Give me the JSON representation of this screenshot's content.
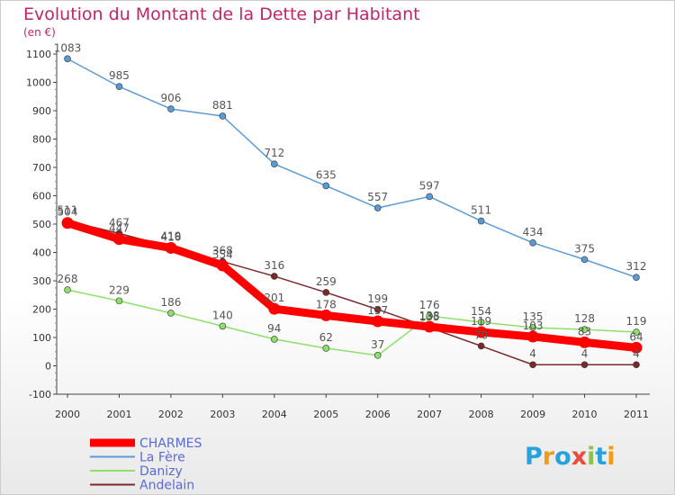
{
  "chart_data": {
    "type": "line",
    "title": "Evolution du Montant de la Dette par Habitant",
    "subtitle": "(en €)",
    "xlabel": "",
    "ylabel": "",
    "x": [
      "2000",
      "2001",
      "2002",
      "2003",
      "2004",
      "2005",
      "2006",
      "2007",
      "2008",
      "2009",
      "2010",
      "2011"
    ],
    "ylim": [
      -100,
      1100
    ],
    "yticks": [
      -100,
      0,
      100,
      200,
      300,
      400,
      500,
      600,
      700,
      800,
      900,
      1000,
      1100
    ],
    "grid": false,
    "legend": "bottom-left",
    "series": [
      {
        "name": "La Fère",
        "color": "#5b9bd5",
        "values": [
          1083,
          985,
          906,
          881,
          712,
          635,
          557,
          597,
          511,
          434,
          375,
          312
        ]
      },
      {
        "name": "Danizy",
        "color": "#8ee06b",
        "values": [
          268,
          229,
          186,
          140,
          94,
          62,
          37,
          176,
          154,
          135,
          128,
          119
        ]
      },
      {
        "name": "Andelain",
        "color": "#7a2a2a",
        "values": [
          511,
          467,
          419,
          368,
          316,
          259,
          199,
          135,
          70,
          4,
          4,
          4
        ]
      },
      {
        "name": "CHARMES",
        "color": "#ff0000",
        "values": [
          504,
          447,
          416,
          354,
          201,
          178,
          157,
          138,
          119,
          103,
          83,
          64
        ]
      }
    ]
  },
  "legend": {
    "entries": [
      {
        "label": "CHARMES",
        "color": "#ff0000",
        "width": 9
      },
      {
        "label": "La Fère",
        "color": "#5b9bd5",
        "width": 2
      },
      {
        "label": "Danizy",
        "color": "#8ee06b",
        "width": 2
      },
      {
        "label": "Andelain",
        "color": "#7a2a2a",
        "width": 2
      }
    ]
  },
  "logo": {
    "text": "Proxiti"
  }
}
